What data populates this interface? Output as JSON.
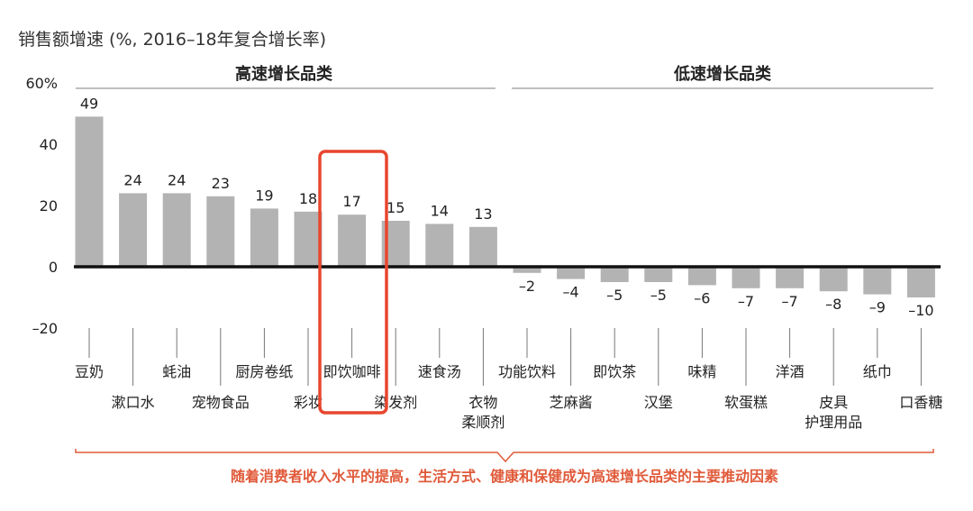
{
  "chart_data": {
    "type": "bar",
    "ylabel": "销售额增速 (%, 2016–18年复合增长率)",
    "y_ticks": [
      "60%",
      "40",
      "20",
      "0",
      "–20"
    ],
    "y_tick_values": [
      60,
      40,
      20,
      0,
      -20
    ],
    "ylim": [
      -20,
      60
    ],
    "grid": false,
    "groups": [
      {
        "name": "高速增长品类",
        "start": 0,
        "end": 9
      },
      {
        "name": "低速增长品类",
        "start": 10,
        "end": 19
      }
    ],
    "categories": [
      "豆奶",
      "漱口水",
      "蚝油",
      "宠物食品",
      "厨房卷纸",
      "彩妆",
      "即饮咖啡",
      "染发剂",
      "速食汤",
      "衣物柔顺剂",
      "功能饮料",
      "芝麻酱",
      "即饮茶",
      "汉堡",
      "味精",
      "软蛋糕",
      "洋酒",
      "皮具护理用品",
      "纸巾",
      "口香糖"
    ],
    "category_lines": [
      [
        "豆奶"
      ],
      [
        "漱口水"
      ],
      [
        "蚝油"
      ],
      [
        "宠物食品"
      ],
      [
        "厨房卷纸"
      ],
      [
        "彩妆"
      ],
      [
        "即饮咖啡"
      ],
      [
        "染发剂"
      ],
      [
        "速食汤"
      ],
      [
        "衣物",
        "柔顺剂"
      ],
      [
        "功能饮料"
      ],
      [
        "芝麻酱"
      ],
      [
        "即饮茶"
      ],
      [
        "汉堡"
      ],
      [
        "味精"
      ],
      [
        "软蛋糕"
      ],
      [
        "洋酒"
      ],
      [
        "皮具",
        "护理用品"
      ],
      [
        "纸巾"
      ],
      [
        "口香糖"
      ]
    ],
    "values": [
      49,
      24,
      24,
      23,
      19,
      18,
      17,
      15,
      14,
      13,
      -2,
      -4,
      -5,
      -5,
      -6,
      -7,
      -7,
      -8,
      -9,
      -10
    ],
    "value_labels": [
      "49",
      "24",
      "24",
      "23",
      "19",
      "18",
      "17",
      "15",
      "14",
      "13",
      "–2",
      "–4",
      "–5",
      "–5",
      "–6",
      "–7",
      "–7",
      "–8",
      "–9",
      "–10"
    ],
    "highlight_category": "即饮咖啡",
    "annotation": "随着消费者收入水平的提高，生活方式、健康和保健成为高速增长品类的主要推动因素",
    "colors": {
      "bar": "#b3b3b3",
      "axis": "#111111",
      "highlight": "#e8462e",
      "annotation": "#e05a3a",
      "rule": "#999999"
    }
  }
}
